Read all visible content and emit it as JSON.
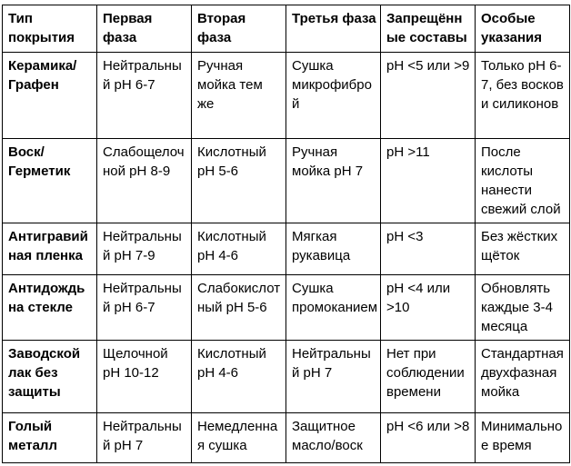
{
  "table": {
    "description": "Car coating care phases table",
    "colors": {
      "border": "#000000",
      "text": "#000000",
      "background": "#ffffff"
    },
    "columns": [
      "Тип покрытия",
      "Первая фаза",
      "Вторая фаза",
      "Третья фаза",
      "Запрещённые составы",
      "Особые указания"
    ],
    "rows": [
      {
        "cells": [
          "Керамика/Графен",
          "Нейтральный pH 6-7",
          "Ручная мойка тем же",
          "Сушка микрофиброй",
          "pH <5 или >9",
          "Только pH 6-7, без восков и силиконов"
        ]
      },
      {
        "cells": [
          "Воск/Герметик",
          "Слабощелочной pH 8-9",
          "Кислотный pH 5-6",
          "Ручная мойка pH 7",
          "pH >11",
          "После кислоты нанести свежий слой"
        ]
      },
      {
        "cells": [
          "Антигравийная пленка",
          "Нейтральный pH 7-9",
          "Кислотный pH 4-6",
          "Мягкая рукавица",
          "pH <3",
          "Без жёстких щёток"
        ]
      },
      {
        "cells": [
          "Антидождь на стекле",
          "Нейтральный pH 6-7",
          "Слабокислотный pH 5-6",
          "Сушка промоканием",
          "pH <4 или >10",
          "Обновлять каждые 3-4 месяца"
        ]
      },
      {
        "cells": [
          "Заводской лак без защиты",
          "Щелочной pH 10-12",
          "Кислотный pH 4-6",
          "Нейтральный pH 7",
          "Нет при соблюдении времени",
          "Стандартная двухфазная мойка"
        ]
      },
      {
        "cells": [
          "Голый металл",
          "Нейтральный pH 7",
          "Немедленная сушка",
          "Защитное масло/воск",
          "pH <6 или >8",
          "Минимальное время"
        ]
      }
    ]
  }
}
